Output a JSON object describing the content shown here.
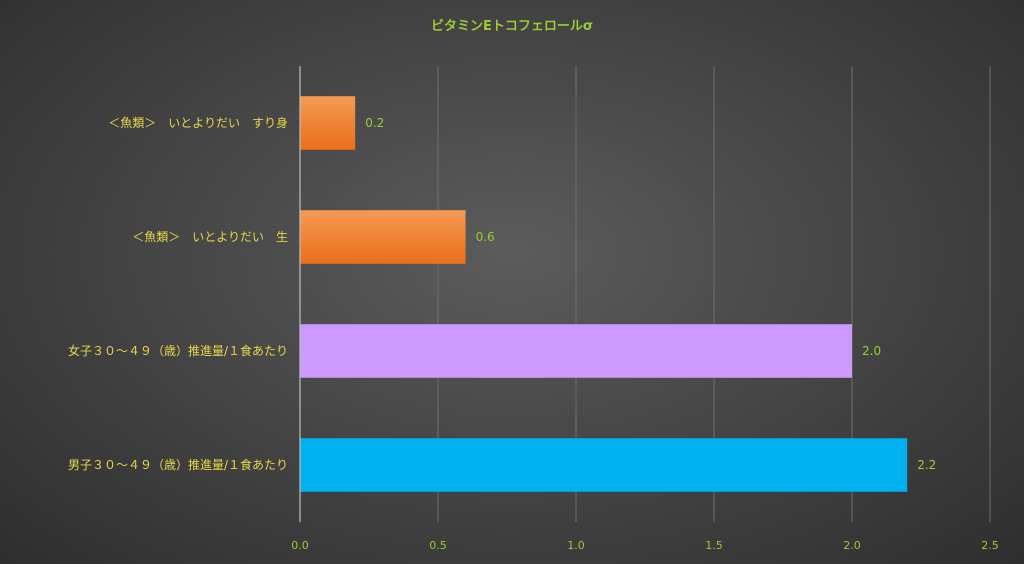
{
  "chart_data": {
    "type": "bar",
    "orientation": "horizontal",
    "title": "ビタミンEトコフェロールσ",
    "categories": [
      "＜魚類＞　いとよりだい　すり身",
      "＜魚類＞　いとよりだい　生",
      "女子３０～４９（歳）推進量/１食あたり",
      "男子３０～４９（歳）推進量/１食あたり"
    ],
    "values": [
      0.2,
      0.6,
      2.0,
      2.2
    ],
    "value_labels": [
      "0.2",
      "0.6",
      "2.0",
      "2.2"
    ],
    "bar_colors": [
      "#f07d2a",
      "#f07d2a",
      "#cc99ff",
      "#00b0ef"
    ],
    "xlim": [
      0,
      2.5
    ],
    "xticks": [
      "0.0",
      "0.5",
      "1.0",
      "1.5",
      "2.0",
      "2.5"
    ],
    "grid": "vertical",
    "legend": "none"
  },
  "colors": {
    "title": "#9acd32",
    "category_label": "#e8d84a",
    "tick_label": "#9acd32",
    "data_label": "#9acd32",
    "gridline": "#6e6e6e"
  }
}
